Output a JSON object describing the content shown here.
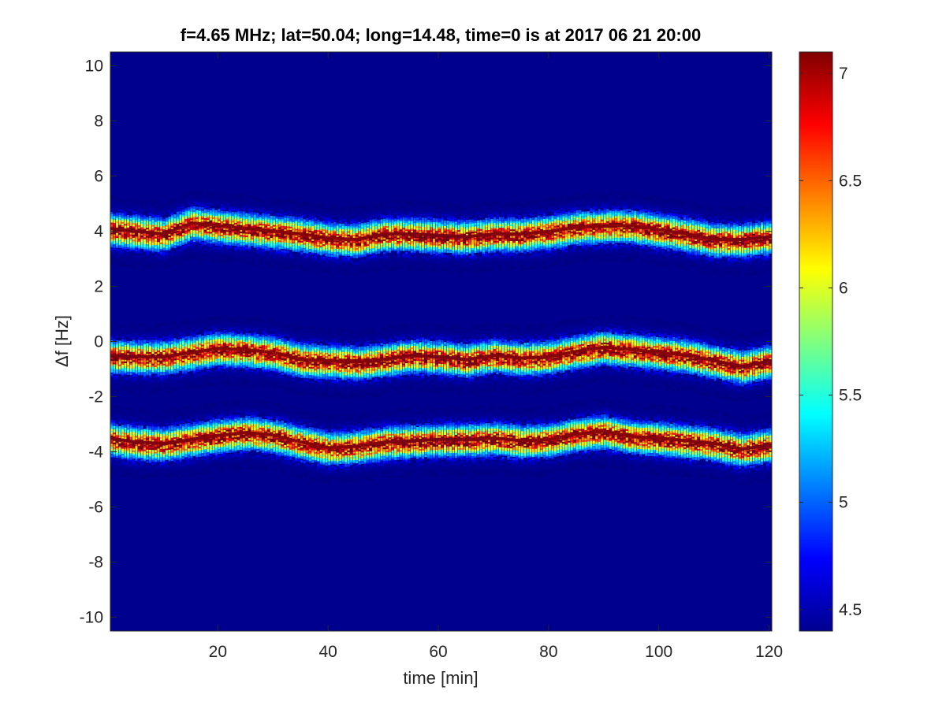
{
  "chart_data": {
    "type": "heatmap",
    "title": "f=4.65 MHz;  lat=50.04; long=14.48, time=0 is at 2017 06 21 20:00",
    "xlabel": "time [min]",
    "ylabel": "Δf [Hz]",
    "xlim": [
      0.5,
      120.5
    ],
    "ylim": [
      -10.5,
      10.5
    ],
    "x_ticks": [
      20,
      40,
      60,
      80,
      100,
      120
    ],
    "y_ticks": [
      -10,
      -8,
      -6,
      -4,
      -2,
      0,
      2,
      4,
      6,
      8,
      10
    ],
    "colormap": "jet",
    "colorbar": {
      "range": [
        4.4,
        7.1
      ],
      "ticks": [
        4.5,
        5,
        5.5,
        6,
        6.5,
        7
      ],
      "placement": "right"
    },
    "background_value": 4.4,
    "series": [
      {
        "x": [
          0,
          5,
          10,
          15,
          20,
          25,
          30,
          35,
          40,
          45,
          50,
          55,
          60,
          65,
          70,
          75,
          80,
          85,
          90,
          95,
          100,
          105,
          110,
          115,
          120
        ],
        "values": [
          4.1,
          4.0,
          3.9,
          4.3,
          4.2,
          4.1,
          4.0,
          3.9,
          3.75,
          3.7,
          3.9,
          3.9,
          3.85,
          3.8,
          3.9,
          3.9,
          4.0,
          4.15,
          4.2,
          4.2,
          4.05,
          3.9,
          3.7,
          3.7,
          3.8
        ]
      },
      {
        "x": [
          0,
          5,
          10,
          15,
          20,
          25,
          30,
          35,
          40,
          45,
          50,
          55,
          60,
          65,
          70,
          75,
          80,
          85,
          90,
          95,
          100,
          105,
          110,
          115,
          120
        ],
        "values": [
          -0.5,
          -0.55,
          -0.55,
          -0.4,
          -0.25,
          -0.3,
          -0.4,
          -0.65,
          -0.7,
          -0.75,
          -0.65,
          -0.5,
          -0.55,
          -0.65,
          -0.5,
          -0.6,
          -0.55,
          -0.35,
          -0.2,
          -0.3,
          -0.4,
          -0.5,
          -0.7,
          -0.9,
          -0.7
        ]
      },
      {
        "x": [
          0,
          5,
          10,
          15,
          20,
          25,
          30,
          35,
          40,
          45,
          50,
          55,
          60,
          65,
          70,
          75,
          80,
          85,
          90,
          95,
          100,
          105,
          110,
          115,
          120
        ],
        "values": [
          -3.5,
          -3.65,
          -3.7,
          -3.55,
          -3.4,
          -3.3,
          -3.4,
          -3.65,
          -3.85,
          -3.8,
          -3.65,
          -3.6,
          -3.55,
          -3.55,
          -3.5,
          -3.6,
          -3.55,
          -3.35,
          -3.25,
          -3.45,
          -3.5,
          -3.6,
          -3.7,
          -3.9,
          -3.75
        ]
      }
    ]
  }
}
